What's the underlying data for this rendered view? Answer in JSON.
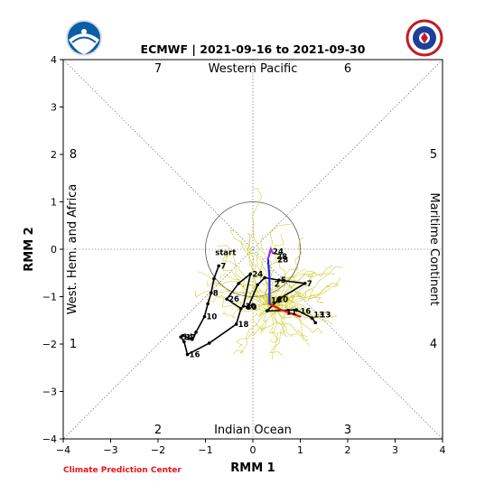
{
  "chart_data": {
    "type": "line",
    "title": "ECMWF | 2021-09-16 to 2021-09-30",
    "xlabel": "RMM 1",
    "ylabel": "RMM 2",
    "xlim": [
      -4,
      4
    ],
    "ylim": [
      -4,
      4
    ],
    "xticks": [
      "−4",
      "−3",
      "−2",
      "−1",
      "0",
      "1",
      "2",
      "3",
      "4"
    ],
    "yticks": [
      "−4",
      "−3",
      "−2",
      "−1",
      "0",
      "1",
      "2",
      "3",
      "4"
    ],
    "unit_circle_radius": 1,
    "phase_numbers": [
      "1",
      "2",
      "3",
      "4",
      "5",
      "6",
      "7",
      "8"
    ],
    "region_labels": {
      "top": "Western Pacific",
      "bottom": "Indian Ocean",
      "left": "West. Hem. and Africa",
      "right": "Maritime Continent"
    },
    "start_label": "start",
    "observed": {
      "points": [
        {
          "x": -0.72,
          "y": -0.35,
          "label": "7"
        },
        {
          "x": -0.82,
          "y": -0.62,
          "label": ""
        },
        {
          "x": -0.88,
          "y": -0.92,
          "label": "8"
        },
        {
          "x": -0.95,
          "y": -1.15,
          "label": ""
        },
        {
          "x": -1.02,
          "y": -1.42,
          "label": "10"
        },
        {
          "x": -1.2,
          "y": -1.75,
          "label": ""
        },
        {
          "x": -1.28,
          "y": -1.9,
          "label": ""
        },
        {
          "x": -1.48,
          "y": -1.82,
          "label": ""
        },
        {
          "x": -1.52,
          "y": -1.85,
          "label": "14"
        },
        {
          "x": -1.45,
          "y": -1.95,
          "label": ""
        },
        {
          "x": -1.38,
          "y": -2.22,
          "label": "16"
        },
        {
          "x": -0.92,
          "y": -1.98,
          "label": ""
        },
        {
          "x": -0.35,
          "y": -1.58,
          "label": "18"
        },
        {
          "x": -0.25,
          "y": -1.25,
          "label": ""
        },
        {
          "x": -0.55,
          "y": -1.05,
          "label": "26"
        },
        {
          "x": -0.3,
          "y": -0.72,
          "label": ""
        },
        {
          "x": -0.05,
          "y": -0.52,
          "label": "24"
        },
        {
          "x": -0.2,
          "y": -1.2,
          "label": "30"
        },
        {
          "x": -0.1,
          "y": -1.22,
          "label": ""
        },
        {
          "x": 0.1,
          "y": -0.75,
          "label": ""
        },
        {
          "x": 0.25,
          "y": -0.6,
          "label": ""
        },
        {
          "x": 0.55,
          "y": -0.65,
          "label": "5"
        },
        {
          "x": 1.1,
          "y": -0.72,
          "label": "7"
        },
        {
          "x": 0.55,
          "y": -1.05,
          "label": ""
        },
        {
          "x": 0.3,
          "y": -1.3,
          "label": ""
        },
        {
          "x": 0.92,
          "y": -1.28,
          "label": ""
        },
        {
          "x": 1.25,
          "y": -1.45,
          "label": ""
        },
        {
          "x": 1.32,
          "y": -1.55,
          "label": ""
        }
      ]
    },
    "extra_labels": [
      {
        "x": 0.7,
        "y": -1.32,
        "text": "11"
      },
      {
        "x": 1.0,
        "y": -1.3,
        "text": "16"
      },
      {
        "x": 1.28,
        "y": -1.38,
        "text": "13"
      },
      {
        "x": 1.42,
        "y": -1.38,
        "text": "13"
      },
      {
        "x": 0.38,
        "y": -1.08,
        "text": "19"
      },
      {
        "x": 0.52,
        "y": -1.06,
        "text": "20"
      },
      {
        "x": 0.45,
        "y": -0.73,
        "text": "2"
      },
      {
        "x": -1.42,
        "y": -1.86,
        "text": "17"
      },
      {
        "x": -0.14,
        "y": -1.22,
        "text": "30"
      },
      {
        "x": 0.42,
        "y": -0.05,
        "text": "24"
      },
      {
        "x": 0.5,
        "y": -0.15,
        "text": "28"
      },
      {
        "x": 0.52,
        "y": -0.22,
        "text": "28"
      }
    ],
    "forecast_mean": {
      "start": {
        "x": 0.35,
        "y": -1.15
      },
      "red": [
        {
          "x": 0.35,
          "y": -1.15
        },
        {
          "x": 0.6,
          "y": -1.28
        },
        {
          "x": 1.0,
          "y": -1.42
        }
      ],
      "blue": [
        {
          "x": 0.35,
          "y": -1.15
        },
        {
          "x": 0.35,
          "y": -0.6
        },
        {
          "x": 0.32,
          "y": -0.2
        }
      ],
      "purple": [
        {
          "x": 0.32,
          "y": -0.2
        },
        {
          "x": 0.35,
          "y": -0.1
        },
        {
          "x": 0.38,
          "y": 0.0
        },
        {
          "x": 0.42,
          "y": -0.08
        }
      ]
    },
    "ensemble_count": 50,
    "colors": {
      "observed": "#000000",
      "ensemble": "#c8c814",
      "forecast_red": "#e8141c",
      "forecast_blue": "#2020ff",
      "forecast_purple": "#9b30ff",
      "credit": "#e8141c"
    }
  },
  "logos": {
    "left": {
      "name": "NOAA",
      "icon": "noaa-logo-icon"
    },
    "right": {
      "name": "National Weather Service",
      "icon": "nws-logo-icon"
    }
  },
  "credit": "Climate Prediction Center"
}
